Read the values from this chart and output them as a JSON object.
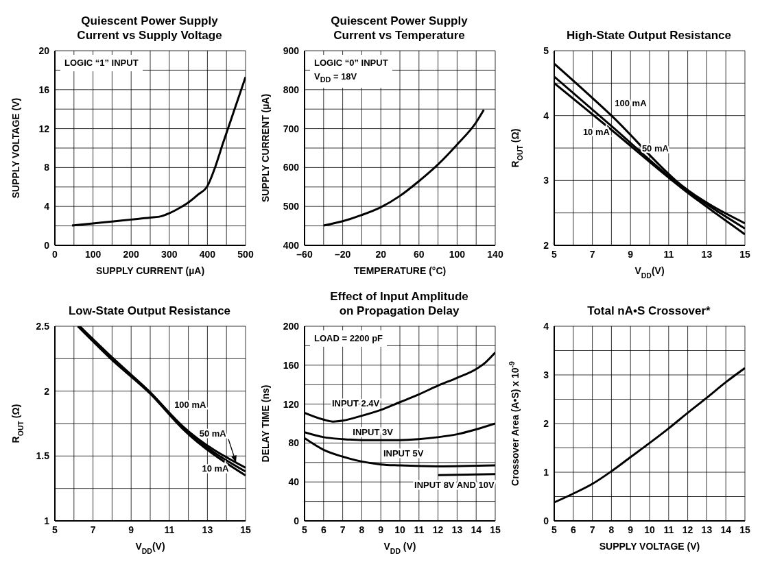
{
  "chart_data": [
    {
      "type": "line",
      "title": "Quiescent Power Supply\nCurrent vs Supply Voltage",
      "xlabel": "SUPPLY CURRENT (µA)",
      "ylabel": "SUPPLY VOLTAGE (V)",
      "annotations": [
        "LOGIC “1” INPUT"
      ],
      "grid": true,
      "xlim": [
        0,
        500
      ],
      "xticks": [
        0,
        {
          "value": 50,
          "label": null
        },
        100,
        {
          "value": 150,
          "label": null
        },
        200,
        {
          "value": 250,
          "label": null
        },
        300,
        {
          "value": 350,
          "label": null
        },
        400,
        {
          "value": 450,
          "label": null
        },
        500
      ],
      "ylim": [
        0,
        20
      ],
      "yticks": [
        0,
        {
          "value": 2,
          "label": null
        },
        4,
        {
          "value": 6,
          "label": null
        },
        8,
        {
          "value": 10,
          "label": null
        },
        12,
        {
          "value": 14,
          "label": null
        },
        16,
        {
          "value": 18,
          "label": null
        },
        20
      ],
      "series": [
        {
          "color": "#000000",
          "x": [
            45,
            100,
            150,
            200,
            250,
            280,
            300,
            325,
            350,
            375,
            400,
            420,
            440,
            460,
            480,
            500
          ],
          "values": [
            2.05,
            2.25,
            2.45,
            2.65,
            2.85,
            3.0,
            3.3,
            3.8,
            4.4,
            5.2,
            6.1,
            8.0,
            10.4,
            12.7,
            15.0,
            17.3
          ]
        }
      ]
    },
    {
      "type": "line",
      "title": "Quiescent Power Supply\nCurrent vs Temperature",
      "xlabel": "TEMPERATURE (°C)",
      "ylabel": "SUPPLY CURRENT (µA)",
      "annotations": [
        "LOGIC “0” INPUT",
        "V$_{DD}$ = 18V"
      ],
      "grid": true,
      "xlim": [
        -60,
        140
      ],
      "xticks": [
        {
          "value": -60,
          "label": "–60"
        },
        {
          "value": -40,
          "label": null
        },
        {
          "value": -20,
          "label": "–20"
        },
        {
          "value": 0,
          "label": null
        },
        20,
        {
          "value": 40,
          "label": null
        },
        60,
        {
          "value": 80,
          "label": null
        },
        100,
        {
          "value": 120,
          "label": null
        },
        140
      ],
      "ylim": [
        400,
        900
      ],
      "yticks": [
        400,
        {
          "value": 450,
          "label": null
        },
        500,
        {
          "value": 550,
          "label": null
        },
        600,
        {
          "value": 650,
          "label": null
        },
        700,
        {
          "value": 750,
          "label": null
        },
        800,
        {
          "value": 850,
          "label": null
        },
        900
      ],
      "series": [
        {
          "color": "#000000",
          "x": [
            -40,
            -20,
            0,
            20,
            40,
            60,
            80,
            100,
            120,
            128
          ],
          "values": [
            451,
            462,
            478,
            498,
            527,
            565,
            608,
            659,
            716,
            748
          ]
        }
      ]
    },
    {
      "type": "line",
      "title": "High-State Output Resistance",
      "xlabel": "V$_{DD}$(V)",
      "ylabel": "R$_{OUT}$ (Ω)",
      "grid": true,
      "xlim": [
        5,
        15
      ],
      "xticks": [
        5,
        {
          "value": 6,
          "label": null
        },
        7,
        {
          "value": 8,
          "label": null
        },
        9,
        {
          "value": 10,
          "label": null
        },
        11,
        {
          "value": 12,
          "label": null
        },
        13,
        {
          "value": 14,
          "label": null
        },
        15
      ],
      "ylim": [
        2,
        5
      ],
      "yticks": [
        2,
        {
          "value": 2.5,
          "label": null
        },
        3,
        {
          "value": 3.5,
          "label": null
        },
        4,
        {
          "value": 4.5,
          "label": null
        },
        5
      ],
      "series": [
        {
          "name": "100 mA",
          "color": "#000000",
          "x": [
            5,
            8,
            11.7,
            15
          ],
          "values": [
            4.8,
            4.0,
            2.92,
            2.34
          ]
        },
        {
          "name": "50 mA",
          "color": "#000000",
          "x": [
            5,
            8,
            11.7,
            15
          ],
          "values": [
            4.6,
            3.84,
            2.9,
            2.26
          ]
        },
        {
          "name": "10 mA",
          "color": "#000000",
          "x": [
            5,
            8,
            11.7,
            15
          ],
          "values": [
            4.5,
            3.78,
            2.88,
            2.17
          ]
        }
      ]
    },
    {
      "type": "line",
      "title": "Low-State Output Resistance",
      "xlabel": "V$_{DD}$(V)",
      "ylabel": "R$_{OUT}$ (Ω)",
      "grid": true,
      "xlim": [
        5,
        15
      ],
      "xticks": [
        5,
        {
          "value": 6,
          "label": null
        },
        7,
        {
          "value": 8,
          "label": null
        },
        9,
        {
          "value": 10,
          "label": null
        },
        11,
        {
          "value": 12,
          "label": null
        },
        13,
        {
          "value": 14,
          "label": null
        },
        15
      ],
      "ylim": [
        1,
        2.5
      ],
      "yticks": [
        1,
        {
          "value": 1.25,
          "label": null
        },
        1.5,
        {
          "value": 1.75,
          "label": null
        },
        2,
        {
          "value": 2.25,
          "label": null
        },
        2.5
      ],
      "series": [
        {
          "name": "100 mA",
          "color": "#000000",
          "x": [
            6.3,
            8,
            10,
            11.7,
            15
          ],
          "values": [
            2.5,
            2.26,
            1.99,
            1.73,
            1.41
          ]
        },
        {
          "name": "50 mA",
          "color": "#000000",
          "x": [
            6.3,
            8,
            10,
            11.7,
            15
          ],
          "values": [
            2.5,
            2.25,
            1.99,
            1.72,
            1.38
          ]
        },
        {
          "name": "10 mA",
          "color": "#000000",
          "x": [
            6.2,
            8,
            10,
            11.7,
            15
          ],
          "values": [
            2.5,
            2.24,
            1.98,
            1.71,
            1.35
          ]
        }
      ]
    },
    {
      "type": "line",
      "title": "Effect of Input Amplitude\non Propagation Delay",
      "xlabel": "V$_{DD}$  (V)",
      "ylabel": "DELAY TIME (ns)",
      "grid": true,
      "annotations": [
        "LOAD = 2200 pF"
      ],
      "xlim": [
        5,
        15
      ],
      "xticks": [
        5,
        6,
        7,
        8,
        9,
        10,
        11,
        12,
        13,
        14,
        15
      ],
      "ylim": [
        0,
        200
      ],
      "yticks": [
        0,
        {
          "value": 20,
          "label": null
        },
        40,
        {
          "value": 60,
          "label": null
        },
        80,
        {
          "value": 100,
          "label": null
        },
        120,
        {
          "value": 140,
          "label": null
        },
        160,
        {
          "value": 180,
          "label": null
        },
        200
      ],
      "series": [
        {
          "name": "INPUT 2.4V",
          "color": "#000000",
          "x": [
            5,
            6,
            6.5,
            7,
            8,
            9,
            10,
            11,
            12,
            13,
            14,
            14.5,
            15
          ],
          "values": [
            111,
            104,
            102,
            103,
            108,
            114,
            122,
            130,
            139,
            147,
            156,
            163,
            173
          ]
        },
        {
          "name": "INPUT 3V",
          "color": "#000000",
          "x": [
            5,
            6,
            7,
            8,
            10,
            11,
            12,
            13,
            14,
            15
          ],
          "values": [
            91,
            86,
            84,
            83,
            83,
            84,
            86,
            89,
            94,
            100
          ]
        },
        {
          "name": "INPUT 5V",
          "color": "#000000",
          "x": [
            5,
            6,
            7,
            8,
            9,
            10,
            12,
            15
          ],
          "values": [
            85,
            73,
            66,
            61,
            58,
            57,
            56,
            57
          ]
        },
        {
          "name": "INPUT 8V AND 10V",
          "color": "#000000",
          "x": [
            12,
            15
          ],
          "values": [
            47,
            48
          ]
        }
      ]
    },
    {
      "type": "line",
      "title": "Total nA•S Crossover*",
      "xlabel": "SUPPLY VOLTAGE (V)",
      "ylabel": "Crossover Area (A•S) x 10$^{-9}$",
      "grid": true,
      "xlim": [
        5,
        15
      ],
      "xticks": [
        5,
        6,
        7,
        8,
        9,
        10,
        11,
        12,
        13,
        14,
        15
      ],
      "ylim": [
        0,
        4
      ],
      "yticks": [
        0,
        {
          "value": 0.5,
          "label": null
        },
        1,
        {
          "value": 1.5,
          "label": null
        },
        2,
        {
          "value": 2.5,
          "label": null
        },
        3,
        {
          "value": 3.5,
          "label": null
        },
        4
      ],
      "series": [
        {
          "color": "#000000",
          "x": [
            5,
            6,
            7,
            8,
            9,
            10,
            11,
            12,
            13,
            14,
            15
          ],
          "values": [
            0.38,
            0.56,
            0.76,
            1.02,
            1.31,
            1.6,
            1.9,
            2.22,
            2.53,
            2.85,
            3.14
          ]
        }
      ]
    }
  ]
}
